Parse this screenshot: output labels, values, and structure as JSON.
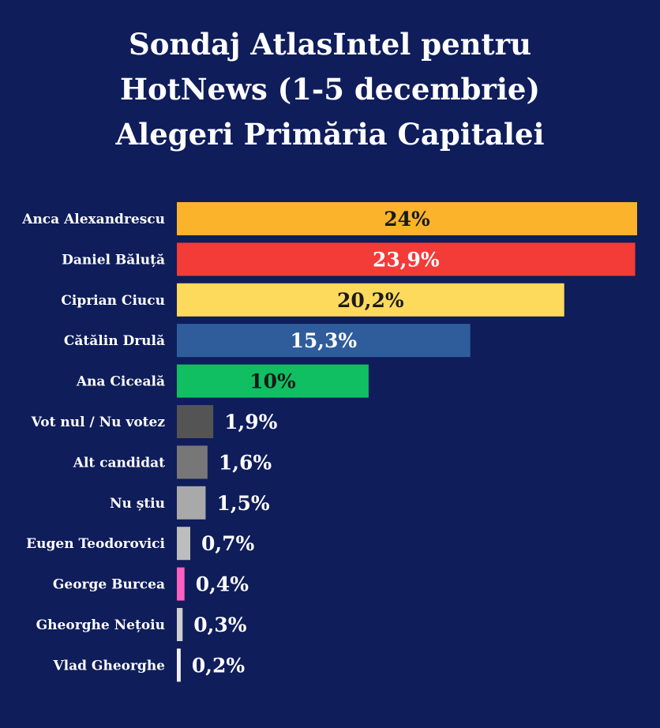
{
  "chart_data": {
    "type": "bar",
    "orientation": "horizontal",
    "title": [
      "Sondaj AtlasIntel pentru",
      "HotNews (1-5 decembrie)",
      "Alegeri Primăria Capitalei"
    ],
    "categories": [
      "Anca Alexandrescu",
      "Daniel Băluță",
      "Ciprian Ciucu",
      "Cătălin Drulă",
      "Ana Ciceală",
      "Vot nul / Nu votez",
      "Alt candidat",
      "Nu știu",
      "Eugen Teodorovici",
      "George Burcea",
      "Gheorghe Nețoiu",
      "Vlad Gheorghe"
    ],
    "values": [
      24,
      23.9,
      20.2,
      15.3,
      10,
      1.9,
      1.6,
      1.5,
      0.7,
      0.4,
      0.3,
      0.2
    ],
    "value_labels": [
      "24%",
      "23,9%",
      "20,2%",
      "15,3%",
      "10%",
      "1,9%",
      "1,6%",
      "1,5%",
      "0,7%",
      "0,4%",
      "0,3%",
      "0,2%"
    ],
    "colors": [
      "#fbb32c",
      "#f33b37",
      "#fdd95c",
      "#2f5d9b",
      "#10bf62",
      "#545454",
      "#777777",
      "#a9a9a9",
      "#bdbdbd",
      "#ff5fbf",
      "#cfcfcf",
      "#f0f0f0"
    ],
    "label_colors": [
      "#1a1a1a",
      "#ffffff",
      "#1a1a1a",
      "#ffffff",
      "#1a1a1a",
      "#ffffff",
      "#ffffff",
      "#ffffff",
      "#ffffff",
      "#ffffff",
      "#ffffff",
      "#ffffff"
    ],
    "xlim": [
      0,
      24
    ],
    "grid": false,
    "background": "#0f1d5b"
  }
}
